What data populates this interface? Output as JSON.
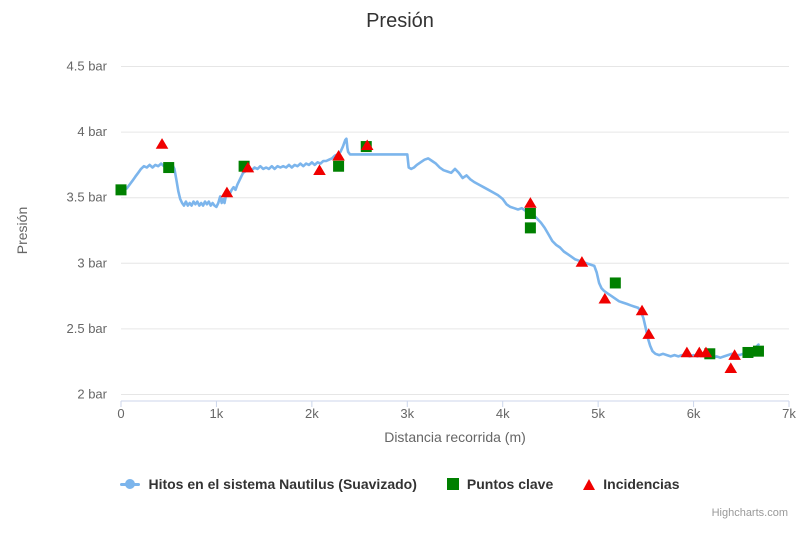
{
  "credits": "Highcharts.com",
  "chart_data": {
    "type": "line",
    "title": "Presión",
    "xlabel": "Distancia recorrida (m)",
    "ylabel": "Presión",
    "xlim": [
      0,
      7000
    ],
    "ylim": [
      1.95,
      4.55
    ],
    "xticks": [
      0,
      1000,
      2000,
      3000,
      4000,
      5000,
      6000,
      7000
    ],
    "xtick_labels": [
      "0",
      "1k",
      "2k",
      "3k",
      "4k",
      "5k",
      "6k",
      "7k"
    ],
    "yticks": [
      2,
      2.5,
      3,
      3.5,
      4,
      4.5
    ],
    "ytick_labels": [
      "2 bar",
      "2.5 bar",
      "3 bar",
      "3.5 bar",
      "4 bar",
      "4.5 bar"
    ],
    "grid": "horizontal",
    "legend_position": "bottom",
    "style": {
      "grid_color": "#e6e6e6",
      "axis_line_color": "#ccd6eb",
      "label_color": "#666666",
      "title_color": "#333333"
    },
    "series": [
      {
        "name": "Hitos en el sistema Nautilus (Suavizado)",
        "type": "line",
        "marker": "circle",
        "color": "#7cb5ec",
        "data": [
          [
            0,
            3.56
          ],
          [
            30,
            3.58
          ],
          [
            60,
            3.57
          ],
          [
            90,
            3.6
          ],
          [
            120,
            3.63
          ],
          [
            150,
            3.66
          ],
          [
            180,
            3.69
          ],
          [
            210,
            3.72
          ],
          [
            240,
            3.74
          ],
          [
            270,
            3.73
          ],
          [
            300,
            3.75
          ],
          [
            330,
            3.73
          ],
          [
            360,
            3.75
          ],
          [
            390,
            3.74
          ],
          [
            420,
            3.76
          ],
          [
            450,
            3.74
          ],
          [
            480,
            3.75
          ],
          [
            510,
            3.74
          ],
          [
            540,
            3.75
          ],
          [
            560,
            3.72
          ],
          [
            580,
            3.64
          ],
          [
            600,
            3.55
          ],
          [
            620,
            3.49
          ],
          [
            640,
            3.46
          ],
          [
            660,
            3.44
          ],
          [
            680,
            3.47
          ],
          [
            700,
            3.44
          ],
          [
            720,
            3.46
          ],
          [
            740,
            3.44
          ],
          [
            760,
            3.47
          ],
          [
            780,
            3.45
          ],
          [
            800,
            3.47
          ],
          [
            820,
            3.44
          ],
          [
            840,
            3.46
          ],
          [
            860,
            3.44
          ],
          [
            880,
            3.47
          ],
          [
            900,
            3.45
          ],
          [
            920,
            3.47
          ],
          [
            940,
            3.44
          ],
          [
            960,
            3.46
          ],
          [
            980,
            3.44
          ],
          [
            1000,
            3.43
          ],
          [
            1020,
            3.46
          ],
          [
            1040,
            3.51
          ],
          [
            1055,
            3.46
          ],
          [
            1070,
            3.49
          ],
          [
            1085,
            3.46
          ],
          [
            1100,
            3.52
          ],
          [
            1120,
            3.55
          ],
          [
            1140,
            3.53
          ],
          [
            1160,
            3.56
          ],
          [
            1180,
            3.58
          ],
          [
            1200,
            3.56
          ],
          [
            1220,
            3.6
          ],
          [
            1240,
            3.63
          ],
          [
            1260,
            3.66
          ],
          [
            1280,
            3.69
          ],
          [
            1300,
            3.7
          ],
          [
            1320,
            3.72
          ],
          [
            1340,
            3.73
          ],
          [
            1370,
            3.71
          ],
          [
            1400,
            3.73
          ],
          [
            1430,
            3.72
          ],
          [
            1460,
            3.74
          ],
          [
            1490,
            3.72
          ],
          [
            1520,
            3.73
          ],
          [
            1550,
            3.72
          ],
          [
            1580,
            3.74
          ],
          [
            1610,
            3.72
          ],
          [
            1640,
            3.74
          ],
          [
            1670,
            3.73
          ],
          [
            1700,
            3.74
          ],
          [
            1730,
            3.73
          ],
          [
            1760,
            3.75
          ],
          [
            1790,
            3.73
          ],
          [
            1820,
            3.75
          ],
          [
            1850,
            3.74
          ],
          [
            1880,
            3.76
          ],
          [
            1910,
            3.74
          ],
          [
            1940,
            3.76
          ],
          [
            1970,
            3.75
          ],
          [
            2000,
            3.77
          ],
          [
            2030,
            3.75
          ],
          [
            2060,
            3.77
          ],
          [
            2090,
            3.76
          ],
          [
            2120,
            3.78
          ],
          [
            2150,
            3.78
          ],
          [
            2180,
            3.79
          ],
          [
            2210,
            3.8
          ],
          [
            2240,
            3.82
          ],
          [
            2270,
            3.83
          ],
          [
            2300,
            3.85
          ],
          [
            2325,
            3.89
          ],
          [
            2350,
            3.94
          ],
          [
            2362,
            3.95
          ],
          [
            2372,
            3.88
          ],
          [
            2380,
            3.85
          ],
          [
            2400,
            3.83
          ],
          [
            2450,
            3.83
          ],
          [
            2500,
            3.83
          ],
          [
            2600,
            3.83
          ],
          [
            2700,
            3.83
          ],
          [
            2800,
            3.83
          ],
          [
            2900,
            3.83
          ],
          [
            3000,
            3.83
          ],
          [
            3015,
            3.73
          ],
          [
            3040,
            3.72
          ],
          [
            3070,
            3.73
          ],
          [
            3100,
            3.75
          ],
          [
            3140,
            3.77
          ],
          [
            3180,
            3.79
          ],
          [
            3220,
            3.8
          ],
          [
            3260,
            3.78
          ],
          [
            3300,
            3.76
          ],
          [
            3340,
            3.73
          ],
          [
            3380,
            3.71
          ],
          [
            3420,
            3.7
          ],
          [
            3460,
            3.69
          ],
          [
            3500,
            3.72
          ],
          [
            3540,
            3.69
          ],
          [
            3580,
            3.65
          ],
          [
            3620,
            3.67
          ],
          [
            3660,
            3.64
          ],
          [
            3700,
            3.62
          ],
          [
            3750,
            3.6
          ],
          [
            3800,
            3.58
          ],
          [
            3850,
            3.56
          ],
          [
            3900,
            3.54
          ],
          [
            3950,
            3.52
          ],
          [
            4000,
            3.49
          ],
          [
            4040,
            3.45
          ],
          [
            4080,
            3.43
          ],
          [
            4120,
            3.42
          ],
          [
            4160,
            3.41
          ],
          [
            4200,
            3.42
          ],
          [
            4240,
            3.4
          ],
          [
            4280,
            3.39
          ],
          [
            4320,
            3.37
          ],
          [
            4360,
            3.34
          ],
          [
            4400,
            3.31
          ],
          [
            4440,
            3.27
          ],
          [
            4480,
            3.22
          ],
          [
            4520,
            3.17
          ],
          [
            4560,
            3.14
          ],
          [
            4600,
            3.12
          ],
          [
            4640,
            3.09
          ],
          [
            4680,
            3.07
          ],
          [
            4720,
            3.05
          ],
          [
            4760,
            3.03
          ],
          [
            4800,
            3.02
          ],
          [
            4840,
            3.01
          ],
          [
            4880,
            3.0
          ],
          [
            4920,
            2.99
          ],
          [
            4960,
            2.98
          ],
          [
            4985,
            2.93
          ],
          [
            5010,
            2.85
          ],
          [
            5035,
            2.81
          ],
          [
            5060,
            2.79
          ],
          [
            5100,
            2.77
          ],
          [
            5140,
            2.75
          ],
          [
            5180,
            2.73
          ],
          [
            5220,
            2.71
          ],
          [
            5260,
            2.7
          ],
          [
            5300,
            2.69
          ],
          [
            5340,
            2.68
          ],
          [
            5380,
            2.67
          ],
          [
            5420,
            2.66
          ],
          [
            5450,
            2.63
          ],
          [
            5475,
            2.58
          ],
          [
            5500,
            2.5
          ],
          [
            5520,
            2.43
          ],
          [
            5545,
            2.37
          ],
          [
            5570,
            2.33
          ],
          [
            5600,
            2.31
          ],
          [
            5640,
            2.3
          ],
          [
            5680,
            2.31
          ],
          [
            5720,
            2.3
          ],
          [
            5760,
            2.29
          ],
          [
            5800,
            2.3
          ],
          [
            5840,
            2.29
          ],
          [
            5880,
            2.3
          ],
          [
            5920,
            2.3
          ],
          [
            5960,
            2.29
          ],
          [
            6000,
            2.3
          ],
          [
            6040,
            2.29
          ],
          [
            6080,
            2.3
          ],
          [
            6120,
            2.29
          ],
          [
            6160,
            2.3
          ],
          [
            6200,
            2.28
          ],
          [
            6240,
            2.29
          ],
          [
            6280,
            2.28
          ],
          [
            6320,
            2.29
          ],
          [
            6360,
            2.3
          ],
          [
            6400,
            2.31
          ],
          [
            6440,
            2.3
          ],
          [
            6480,
            2.3
          ],
          [
            6520,
            2.31
          ],
          [
            6560,
            2.32
          ],
          [
            6600,
            2.33
          ],
          [
            6640,
            2.35
          ],
          [
            6680,
            2.38
          ]
        ]
      },
      {
        "name": "Puntos clave",
        "type": "scatter",
        "marker": "square",
        "color": "#008000",
        "data": [
          [
            0,
            3.56
          ],
          [
            500,
            3.73
          ],
          [
            1290,
            3.74
          ],
          [
            2280,
            3.74
          ],
          [
            2570,
            3.89
          ],
          [
            4290,
            3.38
          ],
          [
            4290,
            3.27
          ],
          [
            5180,
            2.85
          ],
          [
            6170,
            2.31
          ],
          [
            6570,
            2.32
          ],
          [
            6680,
            2.33
          ]
        ]
      },
      {
        "name": "Incidencias",
        "type": "scatter",
        "marker": "triangle",
        "color": "#f00000",
        "data": [
          [
            430,
            3.91
          ],
          [
            1110,
            3.54
          ],
          [
            1330,
            3.73
          ],
          [
            2080,
            3.71
          ],
          [
            2280,
            3.82
          ],
          [
            2580,
            3.9
          ],
          [
            4290,
            3.46
          ],
          [
            4830,
            3.01
          ],
          [
            5070,
            2.73
          ],
          [
            5460,
            2.64
          ],
          [
            5530,
            2.46
          ],
          [
            5930,
            2.32
          ],
          [
            6060,
            2.32
          ],
          [
            6130,
            2.32
          ],
          [
            6390,
            2.2
          ],
          [
            6430,
            2.3
          ]
        ]
      }
    ]
  }
}
